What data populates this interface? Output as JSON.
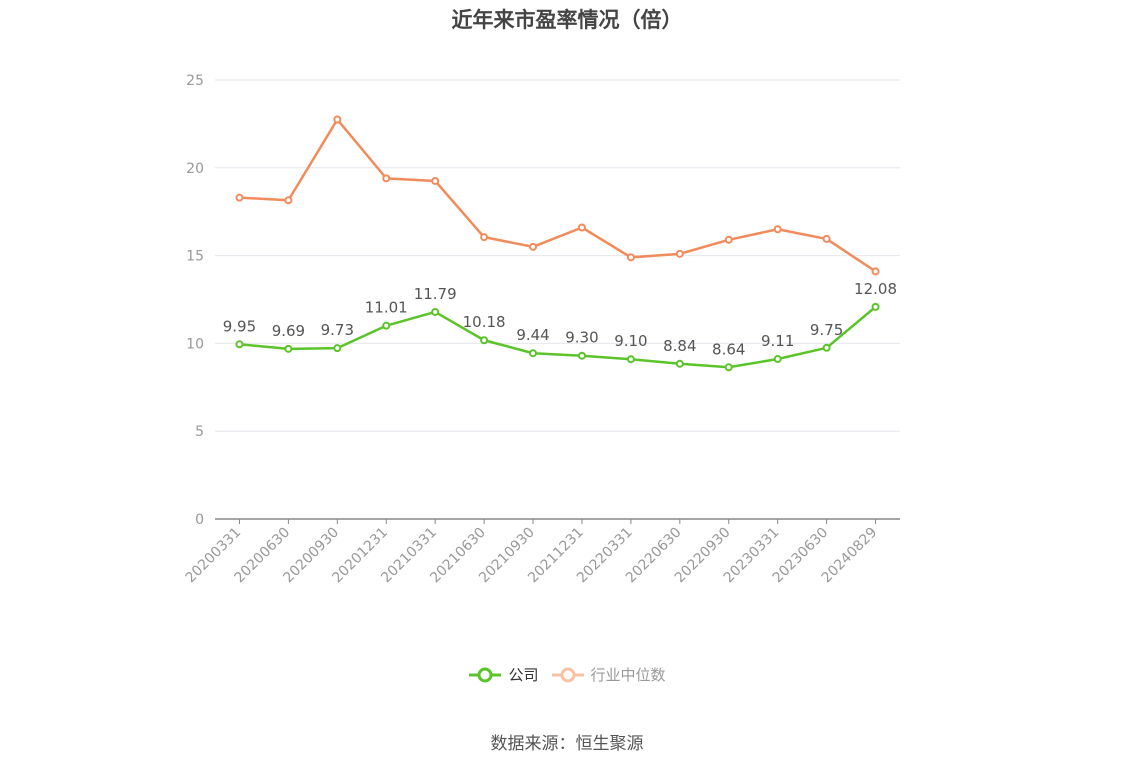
{
  "chart_data": {
    "type": "line",
    "title": "近年来市盈率情况（倍）",
    "categories": [
      "20200331",
      "20200630",
      "20200930",
      "20201231",
      "20210331",
      "20210630",
      "20210930",
      "20211231",
      "20220331",
      "20220630",
      "20220930",
      "20230331",
      "20230630",
      "20240829"
    ],
    "series": [
      {
        "name": "公司",
        "color": "#5ac42a",
        "values": [
          9.95,
          9.69,
          9.73,
          11.01,
          11.79,
          10.18,
          9.44,
          9.3,
          9.1,
          8.84,
          8.64,
          9.11,
          9.75,
          12.08
        ],
        "labels": [
          "9.95",
          "9.69",
          "9.73",
          "11.01",
          "11.79",
          "10.18",
          "9.44",
          "9.30",
          "9.10",
          "8.84",
          "8.64",
          "9.11",
          "9.75",
          "12.08"
        ]
      },
      {
        "name": "行业中位数",
        "color": "#f28b5b",
        "values": [
          18.3,
          18.15,
          22.75,
          19.4,
          19.25,
          16.05,
          15.5,
          16.6,
          14.9,
          15.1,
          15.9,
          16.5,
          15.95,
          14.1
        ]
      }
    ],
    "yticks": [
      "0",
      "5",
      "10",
      "15",
      "20",
      "25"
    ],
    "ylim": [
      0,
      25
    ],
    "grid": true,
    "legend_position": "bottom"
  },
  "source": "数据来源：恒生聚源"
}
